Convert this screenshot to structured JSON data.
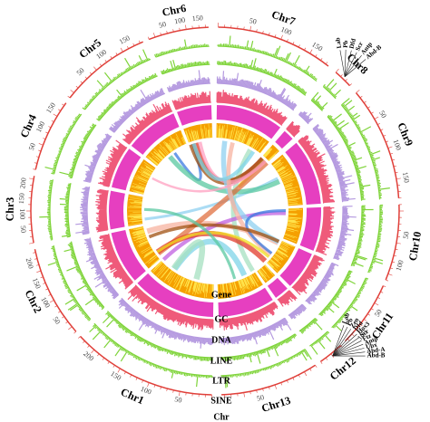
{
  "chromosomes": [
    {
      "name": "Chr7",
      "ticks": [
        "50",
        "100",
        "150"
      ]
    },
    {
      "name": "Chr8",
      "ticks": []
    },
    {
      "name": "Chr9",
      "ticks": [
        "50",
        "100",
        "150"
      ]
    },
    {
      "name": "Chr10",
      "ticks": [
        "50",
        "100"
      ]
    },
    {
      "name": "Chr11",
      "ticks": [
        "50",
        "100"
      ]
    },
    {
      "name": "Chr12",
      "ticks": []
    },
    {
      "name": "Chr13",
      "ticks": [
        "50"
      ]
    },
    {
      "name": "Chr1",
      "ticks": [
        "50",
        "100",
        "150",
        "200"
      ]
    },
    {
      "name": "Chr2",
      "ticks": [
        "50",
        "100",
        "150",
        "200"
      ]
    },
    {
      "name": "Chr3",
      "ticks": [
        "50",
        "100",
        "150",
        "200"
      ]
    },
    {
      "name": "Chr4",
      "ticks": [
        "50",
        "100",
        "150"
      ]
    },
    {
      "name": "Chr5",
      "ticks": [
        "50",
        "100",
        "150"
      ]
    },
    {
      "name": "Chr6",
      "ticks": [
        "50",
        "100",
        "150"
      ]
    }
  ],
  "track_labels": [
    "Gene",
    "GC",
    "DNA",
    "LINE",
    "LTR",
    "SINE",
    "Chr"
  ],
  "gene_groups": [
    {
      "labels": [
        "Lab",
        "Pb",
        "Dfd",
        "Scr",
        "Antp",
        "Abd-B"
      ]
    },
    {
      "labels": [
        "Lab",
        "Pb",
        "Zen",
        "Dfd",
        "Hox3",
        "Scr",
        "Ftz",
        "Antp",
        "Ubx",
        "Abd-A",
        "Abd-B"
      ]
    }
  ]
}
